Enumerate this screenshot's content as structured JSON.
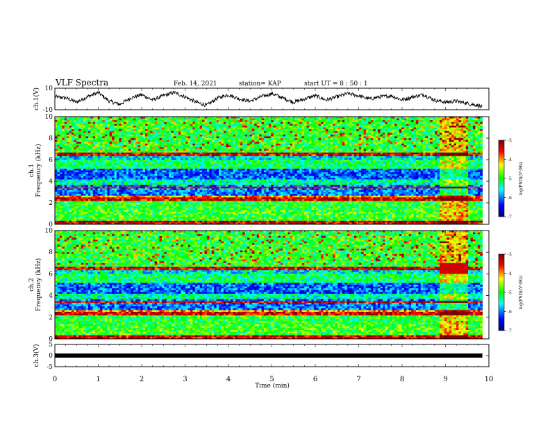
{
  "header": {
    "title": "VLF Spectra",
    "date": "Feb. 14, 2021",
    "station": "station= KAP",
    "start_ut": "start  UT =   8 : 50 : 1"
  },
  "colors": {
    "waveform": "#000000",
    "colormap": [
      "#000080",
      "#0000ff",
      "#00ffff",
      "#00ff00",
      "#ffff00",
      "#ff0000",
      "#800000"
    ]
  },
  "chart_data": [
    {
      "id": "ch1-waveform",
      "type": "line",
      "ylabel": "ch.1(V)",
      "ylim": [
        -10,
        10
      ],
      "yticks": [
        10,
        -10
      ],
      "xlim": [
        0,
        10
      ],
      "x": [
        0,
        0.25,
        0.5,
        0.75,
        1,
        1.25,
        1.5,
        1.75,
        2,
        2.25,
        2.5,
        2.75,
        3,
        3.25,
        3.5,
        3.75,
        4,
        4.25,
        4.5,
        4.75,
        5,
        5.25,
        5.5,
        5.75,
        6,
        6.25,
        6.5,
        6.75,
        7,
        7.25,
        7.5,
        7.75,
        8,
        8.25,
        8.5,
        8.75,
        9,
        9.25,
        9.5,
        9.75,
        9.85
      ],
      "y": [
        2,
        1,
        -3,
        2,
        6,
        -2,
        -5,
        1,
        4,
        -1,
        3,
        6,
        2,
        -3,
        -6,
        1,
        4,
        0,
        -2,
        2,
        5,
        1,
        -3,
        0,
        3,
        -1,
        2,
        5,
        3,
        0,
        2,
        3,
        -1,
        2,
        4,
        -1,
        -3,
        -2,
        -4,
        -6,
        -8
      ]
    },
    {
      "id": "ch1-spectrogram",
      "type": "heatmap",
      "ylabel": "ch.1\nFrequency (kHz)",
      "ylim": [
        0,
        10
      ],
      "yticks": [
        0,
        2,
        4,
        6,
        8,
        10
      ],
      "xlim": [
        0,
        10
      ],
      "colorbar": {
        "label": "log(PSD)(V²/Hz)",
        "range": [
          -7,
          -3
        ],
        "ticks": [
          -3,
          -4,
          -5,
          -6,
          -7
        ]
      }
    },
    {
      "id": "ch2-spectrogram",
      "type": "heatmap",
      "ylabel": "ch.2\nFrequency (kHz)",
      "ylim": [
        0,
        10
      ],
      "yticks": [
        0,
        2,
        4,
        6,
        8,
        10
      ],
      "xlim": [
        0,
        10
      ],
      "colorbar": {
        "label": "log(PSD)(V²/Hz)",
        "range": [
          -7,
          -3
        ],
        "ticks": [
          -3,
          -4,
          -5,
          -6,
          -7
        ]
      }
    },
    {
      "id": "ch3-waveform",
      "type": "line",
      "ylabel": "ch.3(V)",
      "ylim": [
        -5,
        5
      ],
      "yticks": [
        5,
        0,
        -5
      ],
      "xlim": [
        0,
        10
      ],
      "x": [
        0,
        9.85
      ],
      "y": [
        0,
        0
      ]
    }
  ],
  "x_axis": {
    "label": "Time (min)",
    "ticks": [
      0,
      1,
      2,
      3,
      4,
      5,
      6,
      7,
      8,
      9,
      10
    ]
  }
}
